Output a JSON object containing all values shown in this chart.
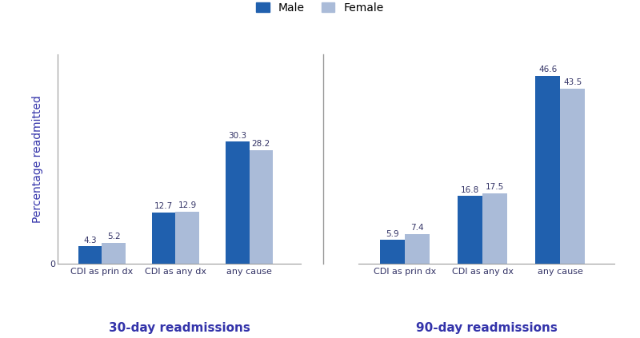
{
  "title": "",
  "ylabel": "Percentage readmitted",
  "male_color": "#2060AE",
  "female_color": "#AABBD8",
  "groups_30day": {
    "label": "30-day readmissions",
    "categories": [
      "CDI as prin dx",
      "CDI as any dx",
      "any cause"
    ],
    "male_values": [
      4.3,
      12.7,
      30.3
    ],
    "female_values": [
      5.2,
      12.9,
      28.2
    ]
  },
  "groups_90day": {
    "label": "90-day readmissions",
    "categories": [
      "CDI as prin dx",
      "CDI as any dx",
      "any cause"
    ],
    "male_values": [
      5.9,
      16.8,
      46.6
    ],
    "female_values": [
      7.4,
      17.5,
      43.5
    ]
  },
  "ylim": [
    0,
    52
  ],
  "bar_width": 0.32,
  "legend_male": "Male",
  "legend_female": "Female",
  "group_label_fontsize": 11,
  "tick_label_fontsize": 8,
  "value_label_fontsize": 7.5,
  "ylabel_fontsize": 10,
  "legend_fontsize": 10,
  "background_color": "#ffffff",
  "label_color": "#3333AA",
  "spine_color": "#999999",
  "text_color": "#333366"
}
